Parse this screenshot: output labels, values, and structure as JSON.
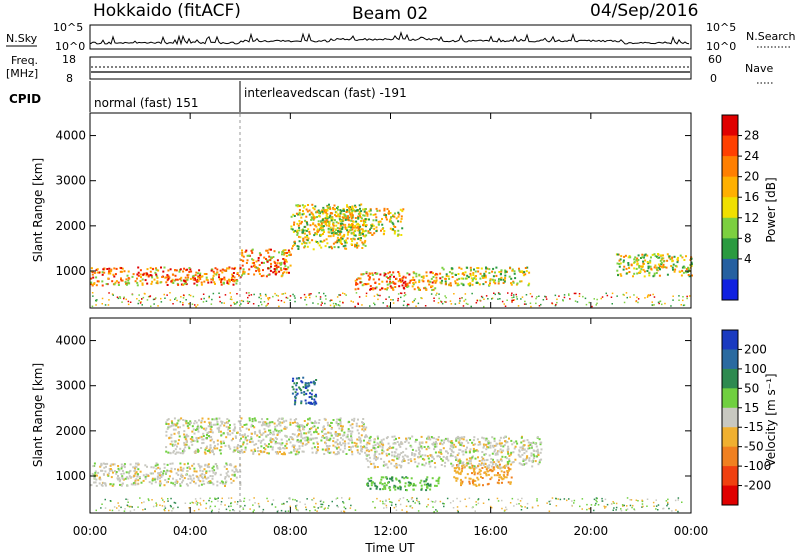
{
  "header": {
    "station": "Hokkaido (fitACF)",
    "beam": "Beam 02",
    "date": "04/Sep/2016"
  },
  "top_panel": {
    "left_label": "N.Sky",
    "left_ticks": [
      "10^5",
      "10^0"
    ],
    "right_ticks": [
      "10^5",
      "10^0"
    ],
    "right_label": "N.Search",
    "freq_label_1": "Freq.",
    "freq_label_2": "[MHz]",
    "freq_ticks": [
      "18",
      "8"
    ],
    "nave_ticks": [
      "60",
      "0"
    ],
    "nave_label": "Nave",
    "cpid_label": "CPID"
  },
  "cpid_segments": [
    {
      "label": "normal (fast) 151",
      "start_hour": 0,
      "end_hour": 6
    },
    {
      "label": "interleavedscan (fast) -191",
      "start_hour": 6,
      "end_hour": 24
    }
  ],
  "chart_data": [
    {
      "type": "heatmap",
      "name": "power",
      "ylabel": "Slant Range [km]",
      "xlabel": "",
      "yticks": [
        1000,
        2000,
        3000,
        4000
      ],
      "xticks": [
        "00:00",
        "04:00",
        "08:00",
        "12:00",
        "16:00",
        "20:00",
        "00:00"
      ],
      "xlim_hours": [
        0,
        24
      ],
      "ylim": [
        180,
        4500
      ],
      "colorbar_label": "Power [dB]",
      "colorbar_ticks": [
        "28",
        "24",
        "20",
        "16",
        "12",
        "8",
        "4"
      ],
      "colorbar_colors": [
        "#e00000",
        "#ff4000",
        "#ff7f00",
        "#ffb000",
        "#f0e000",
        "#7cd040",
        "#2a9a40",
        "#2560a0",
        "#1020e0"
      ],
      "echo_regions": [
        {
          "x": [
            0.0,
            6.0
          ],
          "y": [
            700,
            1100
          ],
          "level": "high"
        },
        {
          "x": [
            6.0,
            8.0
          ],
          "y": [
            900,
            1500
          ],
          "level": "high"
        },
        {
          "x": [
            8.0,
            11.0
          ],
          "y": [
            1500,
            2500
          ],
          "level": "mid"
        },
        {
          "x": [
            9.0,
            12.5
          ],
          "y": [
            1800,
            2400
          ],
          "level": "mid"
        },
        {
          "x": [
            10.5,
            14.0
          ],
          "y": [
            600,
            1000
          ],
          "level": "high"
        },
        {
          "x": [
            14.0,
            17.5
          ],
          "y": [
            700,
            1100
          ],
          "level": "mid"
        },
        {
          "x": [
            21.0,
            24.0
          ],
          "y": [
            900,
            1400
          ],
          "level": "mid"
        }
      ]
    },
    {
      "type": "heatmap",
      "name": "velocity",
      "ylabel": "Slant Range [km]",
      "xlabel": "Time UT",
      "yticks": [
        1000,
        2000,
        3000,
        4000
      ],
      "xticks": [
        "00:00",
        "04:00",
        "08:00",
        "12:00",
        "16:00",
        "20:00",
        "00:00"
      ],
      "xlim_hours": [
        0,
        24
      ],
      "ylim": [
        180,
        4500
      ],
      "colorbar_label": "Velocity [m s⁻¹]",
      "colorbar_ticks": [
        "200",
        "100",
        "50",
        "15",
        "-15",
        "-50",
        "-100",
        "-200"
      ],
      "colorbar_colors": [
        "#1a3ac0",
        "#2a6aa0",
        "#2e8a50",
        "#70d040",
        "#c8c8c0",
        "#f0b030",
        "#f08020",
        "#f04010",
        "#e00000"
      ],
      "echo_regions": [
        {
          "x": [
            0.0,
            6.0
          ],
          "y": [
            800,
            1300
          ],
          "level": "grey"
        },
        {
          "x": [
            3.0,
            11.0
          ],
          "y": [
            1500,
            2300
          ],
          "level": "grey"
        },
        {
          "x": [
            8.0,
            9.0
          ],
          "y": [
            2600,
            3200
          ],
          "level": "blue"
        },
        {
          "x": [
            11.0,
            14.0
          ],
          "y": [
            700,
            1000
          ],
          "level": "green"
        },
        {
          "x": [
            14.5,
            16.8
          ],
          "y": [
            800,
            1300
          ],
          "level": "orange"
        },
        {
          "x": [
            11.0,
            18.0
          ],
          "y": [
            1200,
            1900
          ],
          "level": "grey"
        }
      ]
    }
  ]
}
